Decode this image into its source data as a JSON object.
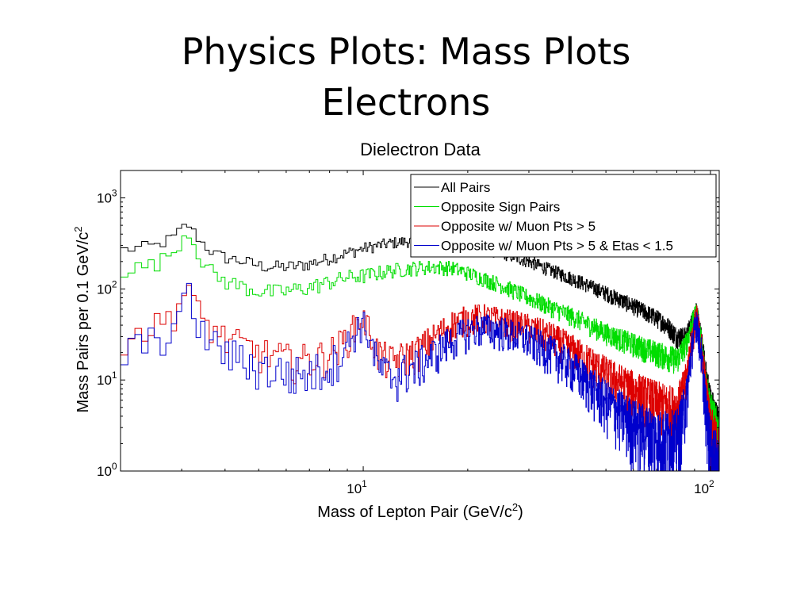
{
  "slide": {
    "title_line1": "Physics Plots: Mass Plots",
    "title_line2": "Electrons"
  },
  "chart_data": {
    "type": "line",
    "title": "Dielectron Data",
    "xlabel": "Mass of Lepton Pair (GeV/c",
    "xlabel_sup": "2",
    "xlabel_end": ")",
    "ylabel": "Mass Pairs per 0.1 GeV/c",
    "ylabel_sup": "2",
    "x_scale": "log",
    "y_scale": "log",
    "xlim": [
      2.0,
      106
    ],
    "ylim": [
      1,
      2000
    ],
    "x_ticks": [
      {
        "base": "10",
        "exp": "1",
        "value": 10
      },
      {
        "base": "10",
        "exp": "2",
        "value": 100
      }
    ],
    "y_ticks": [
      {
        "base": "10",
        "exp": "0",
        "value": 1
      },
      {
        "base": "10",
        "exp": "1",
        "value": 10
      },
      {
        "base": "10",
        "exp": "2",
        "value": 100
      },
      {
        "base": "10",
        "exp": "3",
        "value": 1000
      }
    ],
    "legend_position": "top-right",
    "series": [
      {
        "name": "All Pairs",
        "color": "#000000",
        "noise": 0.1,
        "x": [
          2.0,
          2.5,
          2.8,
          3.0,
          3.1,
          3.2,
          3.4,
          3.7,
          4.0,
          4.5,
          5.0,
          5.5,
          6.0,
          6.5,
          7.0,
          8.0,
          9.0,
          10.0,
          11.0,
          12.0,
          14.0,
          16.0,
          18.0,
          20.0,
          25.0,
          30.0,
          40.0,
          50.0,
          60.0,
          70.0,
          75.0,
          80.0,
          85.0,
          88.0,
          91.0,
          94.0,
          97.0,
          100.0,
          106.0
        ],
        "y": [
          270,
          300,
          370,
          480,
          500,
          420,
          320,
          240,
          220,
          200,
          180,
          175,
          175,
          180,
          190,
          220,
          250,
          280,
          300,
          320,
          340,
          330,
          310,
          300,
          250,
          200,
          130,
          90,
          65,
          48,
          40,
          30,
          30,
          42,
          60,
          30,
          12,
          6,
          3
        ]
      },
      {
        "name": "Opposite Sign Pairs",
        "color": "#00dd00",
        "noise": 0.12,
        "x": [
          2.0,
          2.5,
          2.8,
          3.0,
          3.1,
          3.2,
          3.4,
          3.7,
          4.0,
          4.5,
          5.0,
          5.5,
          6.0,
          7.0,
          8.0,
          9.0,
          10.0,
          11.0,
          12.0,
          14.0,
          16.0,
          18.0,
          20.0,
          25.0,
          30.0,
          40.0,
          50.0,
          60.0,
          70.0,
          80.0,
          85.0,
          88.0,
          91.0,
          94.0,
          97.0,
          100.0,
          106.0
        ],
        "y": [
          160,
          190,
          260,
          380,
          420,
          320,
          200,
          140,
          120,
          105,
          95,
          92,
          95,
          105,
          120,
          135,
          140,
          150,
          160,
          170,
          175,
          170,
          150,
          110,
          80,
          50,
          33,
          25,
          20,
          17,
          25,
          40,
          58,
          28,
          10,
          5,
          2.5
        ]
      },
      {
        "name": "Opposite w/ Muon Pts > 5",
        "color": "#dd0000",
        "noise": 0.25,
        "x": [
          2.0,
          2.5,
          2.8,
          3.0,
          3.1,
          3.2,
          3.4,
          3.7,
          4.0,
          5.0,
          6.0,
          7.0,
          8.0,
          9.0,
          9.5,
          9.8,
          10.0,
          10.4,
          11.0,
          12.0,
          14.0,
          16.0,
          18.0,
          20.0,
          22.0,
          25.0,
          30.0,
          35.0,
          40.0,
          50.0,
          60.0,
          70.0,
          80.0,
          85.0,
          88.0,
          91.0,
          94.0,
          97.0,
          100.0,
          106.0
        ],
        "y": [
          30,
          40,
          55,
          90,
          100,
          70,
          45,
          35,
          28,
          20,
          17,
          17,
          20,
          30,
          42,
          48,
          46,
          35,
          20,
          16,
          20,
          30,
          42,
          48,
          50,
          45,
          38,
          30,
          22,
          12,
          8,
          6,
          5,
          10,
          25,
          52,
          25,
          8,
          3,
          1.5
        ]
      },
      {
        "name": "Opposite w/ Muon Pts > 5 & Etas < 1.5",
        "color": "#0000cc",
        "noise": 0.28,
        "x": [
          2.0,
          2.5,
          2.8,
          3.0,
          3.1,
          3.2,
          3.4,
          3.7,
          4.0,
          5.0,
          6.0,
          7.0,
          8.0,
          9.0,
          9.5,
          9.8,
          10.0,
          10.4,
          11.0,
          12.0,
          14.0,
          16.0,
          18.0,
          20.0,
          22.0,
          25.0,
          30.0,
          35.0,
          40.0,
          50.0,
          60.0,
          70.0,
          80.0,
          85.0,
          88.0,
          91.0,
          94.0,
          97.0,
          100.0,
          106.0
        ],
        "y": [
          20,
          28,
          40,
          70,
          85,
          55,
          33,
          25,
          20,
          14,
          12,
          12,
          15,
          25,
          36,
          42,
          40,
          30,
          14,
          11,
          14,
          20,
          28,
          35,
          38,
          35,
          28,
          20,
          14,
          6,
          3.5,
          2.5,
          2.5,
          6,
          20,
          48,
          20,
          5,
          2,
          1
        ]
      }
    ]
  }
}
